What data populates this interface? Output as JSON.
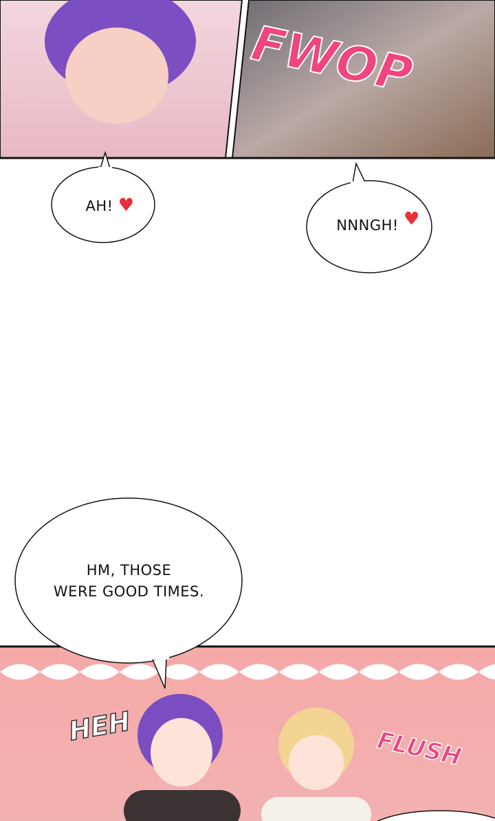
{
  "panels": {
    "top_left": {
      "description_icon": "character-panel"
    },
    "top_right": {
      "sfx": "FWOP"
    },
    "bottom": {
      "sfx_left": "HEH",
      "sfx_right": "FLUSH"
    }
  },
  "bubbles": [
    {
      "text": "AH!",
      "icon": "heart-icon"
    },
    {
      "text": "NNNGH!",
      "icon": "heart-icon"
    },
    {
      "line1": "HM, THOSE",
      "line2": "WERE GOOD TIMES."
    }
  ],
  "colors": {
    "sfx_pink": "#f0457f",
    "heart": "#e8303a",
    "bottom_bg": "#f4a6a6"
  }
}
